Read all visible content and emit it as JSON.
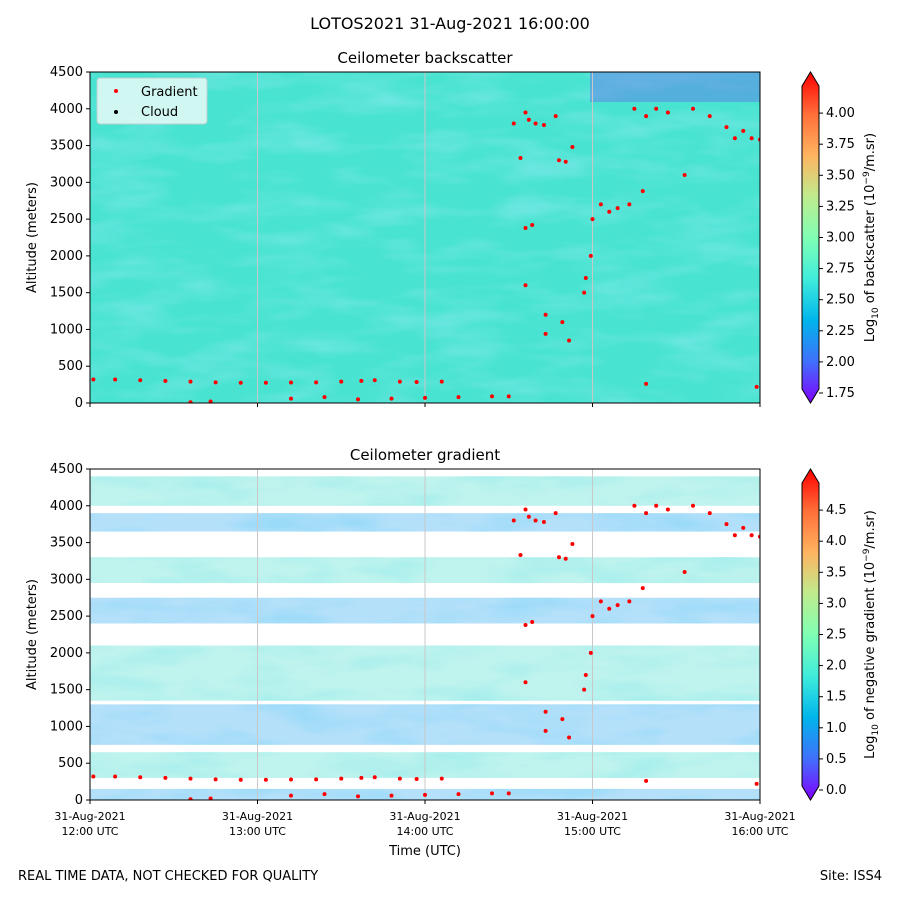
{
  "figure": {
    "suptitle": "LOTOS2021 31-Aug-2021 16:00:00",
    "footer_left": "REAL TIME DATA, NOT CHECKED FOR QUALITY",
    "footer_right": "Site: ISS4"
  },
  "legend": {
    "gradient_label": "Gradient",
    "cloud_label": "Cloud"
  },
  "colors": {
    "rainbow": [
      "#8000ff",
      "#4070fb",
      "#00b5eb",
      "#40eddb",
      "#80ffb4",
      "#c0eb8d",
      "#ffb360",
      "#ff6d38",
      "#ff0000"
    ],
    "marker": "#ff0000",
    "grid": "#c8c8c8",
    "bg_top": "#48e3d1",
    "bg_bottom": "#ffffff"
  },
  "chart_data": [
    {
      "type": "heatmap",
      "title": "Ceilometer backscatter",
      "xlabel": "",
      "ylabel": "Altitude (meters)",
      "x_range_hours": [
        12,
        16
      ],
      "ylim": [
        0,
        4500
      ],
      "yticks": [
        "0",
        "500",
        "1000",
        "1500",
        "2000",
        "2500",
        "3000",
        "3500",
        "4000",
        "4500"
      ],
      "xticks": [],
      "colorbar": {
        "label": "Log10 of backscatter (10^-9/m.sr)",
        "min": 1.75,
        "max": 4.25,
        "ticks": [
          "1.75",
          "2.00",
          "2.25",
          "2.50",
          "2.75",
          "3.00",
          "3.25",
          "3.50",
          "3.75",
          "4.00"
        ]
      },
      "series": [
        {
          "name": "Gradient",
          "points": [
            [
              12.02,
              320
            ],
            [
              12.15,
              320
            ],
            [
              12.3,
              310
            ],
            [
              12.45,
              300
            ],
            [
              12.6,
              290
            ],
            [
              12.75,
              280
            ],
            [
              12.9,
              275
            ],
            [
              13.05,
              275
            ],
            [
              13.2,
              278
            ],
            [
              13.35,
              280
            ],
            [
              13.5,
              290
            ],
            [
              13.62,
              300
            ],
            [
              13.7,
              310
            ],
            [
              13.85,
              290
            ],
            [
              13.95,
              285
            ],
            [
              14.1,
              290
            ],
            [
              12.6,
              10
            ],
            [
              12.72,
              20
            ],
            [
              13.2,
              60
            ],
            [
              13.4,
              80
            ],
            [
              13.6,
              50
            ],
            [
              13.8,
              60
            ],
            [
              14.0,
              70
            ],
            [
              14.2,
              80
            ],
            [
              14.4,
              90
            ],
            [
              14.5,
              90
            ],
            [
              14.53,
              3800
            ],
            [
              14.57,
              3330
            ],
            [
              14.6,
              3950
            ],
            [
              14.62,
              3850
            ],
            [
              14.66,
              3800
            ],
            [
              14.71,
              3780
            ],
            [
              14.78,
              3900
            ],
            [
              14.6,
              2380
            ],
            [
              14.64,
              2420
            ],
            [
              14.6,
              1600
            ],
            [
              14.72,
              1200
            ],
            [
              14.72,
              940
            ],
            [
              14.82,
              1100
            ],
            [
              14.86,
              850
            ],
            [
              14.8,
              3300
            ],
            [
              14.84,
              3280
            ],
            [
              14.88,
              3480
            ],
            [
              14.95,
              1500
            ],
            [
              14.96,
              1700
            ],
            [
              14.99,
              2000
            ],
            [
              15.0,
              2500
            ],
            [
              15.05,
              2700
            ],
            [
              15.1,
              2600
            ],
            [
              15.15,
              2650
            ],
            [
              15.22,
              2700
            ],
            [
              15.3,
              2880
            ],
            [
              15.25,
              4000
            ],
            [
              15.32,
              3900
            ],
            [
              15.38,
              4000
            ],
            [
              15.45,
              3950
            ],
            [
              15.55,
              3100
            ],
            [
              15.6,
              4000
            ],
            [
              15.7,
              3900
            ],
            [
              15.8,
              3750
            ],
            [
              15.85,
              3600
            ],
            [
              15.9,
              3700
            ],
            [
              15.95,
              3600
            ],
            [
              16.0,
              3580
            ],
            [
              15.32,
              260
            ],
            [
              15.98,
              220
            ]
          ]
        },
        {
          "name": "Cloud",
          "points": []
        }
      ]
    },
    {
      "type": "heatmap",
      "title": "Ceilometer gradient",
      "xlabel": "Time (UTC)",
      "ylabel": "Altitude (meters)",
      "x_range_hours": [
        12,
        16
      ],
      "ylim": [
        0,
        4500
      ],
      "yticks": [
        "0",
        "500",
        "1000",
        "1500",
        "2000",
        "2500",
        "3000",
        "3500",
        "4000",
        "4500"
      ],
      "xticks": [
        {
          "hour": 12,
          "line1": "31-Aug-2021",
          "line2": "12:00 UTC"
        },
        {
          "hour": 13,
          "line1": "31-Aug-2021",
          "line2": "13:00 UTC"
        },
        {
          "hour": 14,
          "line1": "31-Aug-2021",
          "line2": "14:00 UTC"
        },
        {
          "hour": 15,
          "line1": "31-Aug-2021",
          "line2": "15:00 UTC"
        },
        {
          "hour": 16,
          "line1": "31-Aug-2021",
          "line2": "16:00 UTC"
        }
      ],
      "colorbar": {
        "label": "Log10 of negative gradient (10^-9/m.sr)",
        "min": 0.0,
        "max": 5.0,
        "ticks": [
          "0.0",
          "0.5",
          "1.0",
          "1.5",
          "2.0",
          "2.5",
          "3.0",
          "3.5",
          "4.0",
          "4.5"
        ]
      },
      "bands_altitude_m": [
        [
          4000,
          4400
        ],
        [
          3650,
          3900
        ],
        [
          2950,
          3300
        ],
        [
          2400,
          2750
        ],
        [
          1350,
          2100
        ],
        [
          750,
          1300
        ],
        [
          300,
          650
        ],
        [
          0,
          150
        ]
      ],
      "series": [
        {
          "name": "Gradient",
          "points": [
            [
              12.02,
              320
            ],
            [
              12.15,
              320
            ],
            [
              12.3,
              310
            ],
            [
              12.45,
              300
            ],
            [
              12.6,
              290
            ],
            [
              12.75,
              280
            ],
            [
              12.9,
              275
            ],
            [
              13.05,
              275
            ],
            [
              13.2,
              278
            ],
            [
              13.35,
              280
            ],
            [
              13.5,
              290
            ],
            [
              13.62,
              300
            ],
            [
              13.7,
              310
            ],
            [
              13.85,
              290
            ],
            [
              13.95,
              285
            ],
            [
              14.1,
              290
            ],
            [
              12.6,
              10
            ],
            [
              12.72,
              20
            ],
            [
              13.2,
              60
            ],
            [
              13.4,
              80
            ],
            [
              13.6,
              50
            ],
            [
              13.8,
              60
            ],
            [
              14.0,
              70
            ],
            [
              14.2,
              80
            ],
            [
              14.4,
              90
            ],
            [
              14.5,
              90
            ],
            [
              14.53,
              3800
            ],
            [
              14.57,
              3330
            ],
            [
              14.6,
              3950
            ],
            [
              14.62,
              3850
            ],
            [
              14.66,
              3800
            ],
            [
              14.71,
              3780
            ],
            [
              14.78,
              3900
            ],
            [
              14.6,
              2380
            ],
            [
              14.64,
              2420
            ],
            [
              14.6,
              1600
            ],
            [
              14.72,
              1200
            ],
            [
              14.72,
              940
            ],
            [
              14.82,
              1100
            ],
            [
              14.86,
              850
            ],
            [
              14.8,
              3300
            ],
            [
              14.84,
              3280
            ],
            [
              14.88,
              3480
            ],
            [
              14.95,
              1500
            ],
            [
              14.96,
              1700
            ],
            [
              14.99,
              2000
            ],
            [
              15.0,
              2500
            ],
            [
              15.05,
              2700
            ],
            [
              15.1,
              2600
            ],
            [
              15.15,
              2650
            ],
            [
              15.22,
              2700
            ],
            [
              15.3,
              2880
            ],
            [
              15.25,
              4000
            ],
            [
              15.32,
              3900
            ],
            [
              15.38,
              4000
            ],
            [
              15.45,
              3950
            ],
            [
              15.55,
              3100
            ],
            [
              15.6,
              4000
            ],
            [
              15.7,
              3900
            ],
            [
              15.8,
              3750
            ],
            [
              15.85,
              3600
            ],
            [
              15.9,
              3700
            ],
            [
              15.95,
              3600
            ],
            [
              16.0,
              3580
            ],
            [
              15.32,
              260
            ],
            [
              15.98,
              220
            ]
          ]
        }
      ]
    }
  ]
}
